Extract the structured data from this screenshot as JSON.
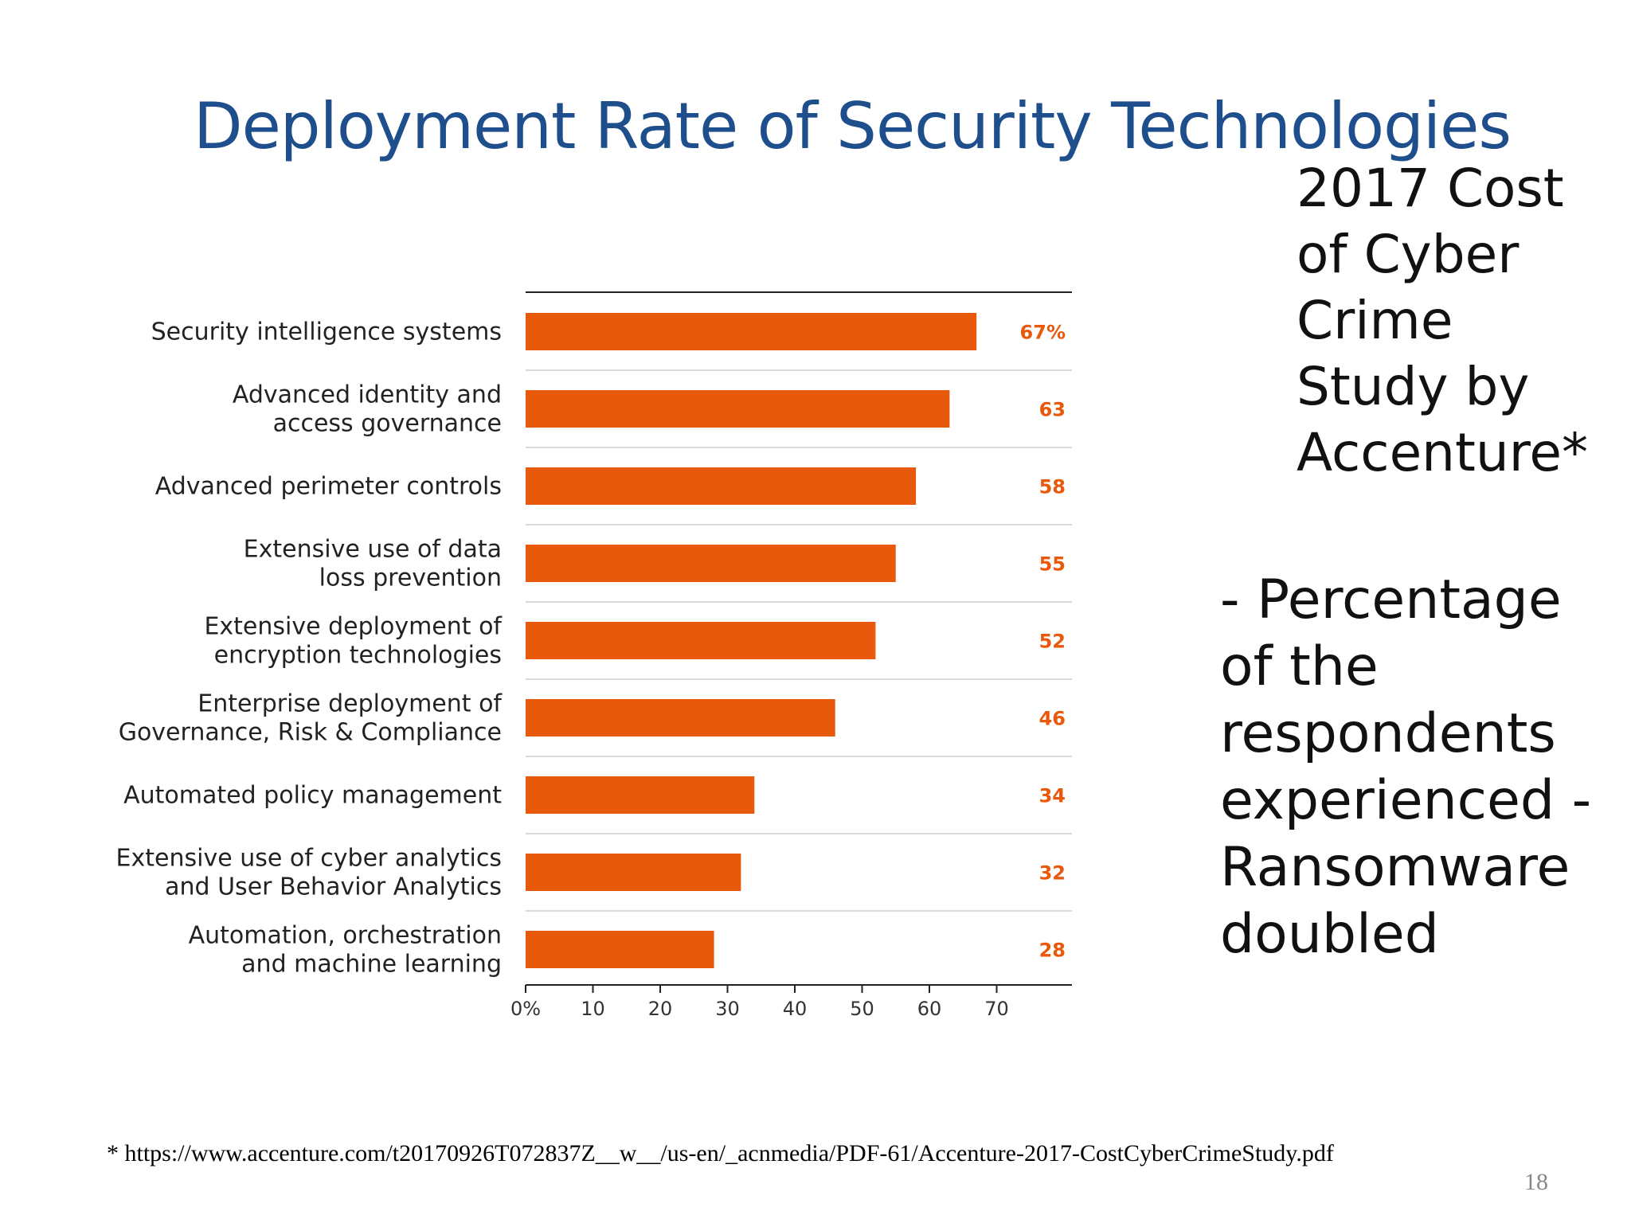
{
  "title": "Deployment Rate of Security Technologies",
  "side_heading": "2017 Cost of Cyber Crime Study by Accenture*",
  "side_note": "- Percentage of the respondents experienced - Ransomware doubled",
  "footnote": "* https://www.accenture.com/t20170926T072837Z__w__/us-en/_acnmedia/PDF-61/Accenture-2017-CostCyberCrimeStudy.pdf",
  "page_number": "18",
  "colors": {
    "bar": "#e8590c",
    "title": "#1f4e8c"
  },
  "chart_data": {
    "type": "bar",
    "orientation": "horizontal",
    "categories": [
      [
        "Security intelligence systems"
      ],
      [
        "Advanced identity and",
        "access governance"
      ],
      [
        "Advanced perimeter controls"
      ],
      [
        "Extensive use of data",
        "loss prevention"
      ],
      [
        "Extensive deployment of",
        "encryption technologies"
      ],
      [
        "Enterprise deployment of",
        "Governance, Risk & Compliance"
      ],
      [
        "Automated policy management"
      ],
      [
        "Extensive use of cyber analytics",
        "and User Behavior Analytics"
      ],
      [
        "Automation, orchestration",
        "and machine learning"
      ]
    ],
    "values": [
      67,
      63,
      58,
      55,
      52,
      46,
      34,
      32,
      28
    ],
    "value_labels": [
      "67%",
      "63",
      "58",
      "55",
      "52",
      "46",
      "34",
      "32",
      "28"
    ],
    "xticks": [
      "0%",
      "10",
      "20",
      "30",
      "40",
      "50",
      "60",
      "70"
    ],
    "xlim": [
      0,
      80
    ],
    "grid": false
  }
}
